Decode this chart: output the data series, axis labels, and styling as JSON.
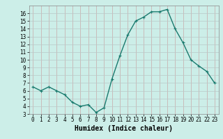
{
  "x": [
    0,
    1,
    2,
    3,
    4,
    5,
    6,
    7,
    8,
    9,
    10,
    11,
    12,
    13,
    14,
    15,
    16,
    17,
    18,
    19,
    20,
    21,
    22,
    23
  ],
  "y": [
    6.5,
    6.0,
    6.5,
    6.0,
    5.5,
    4.5,
    4.0,
    4.2,
    3.2,
    3.8,
    7.5,
    10.5,
    13.2,
    15.0,
    15.5,
    16.2,
    16.2,
    16.5,
    14.0,
    12.2,
    10.0,
    9.2,
    8.5,
    7.0
  ],
  "line_color": "#1a7a6e",
  "marker": "+",
  "marker_size": 3,
  "linewidth": 1.0,
  "xlabel": "Humidex (Indice chaleur)",
  "xlim": [
    -0.5,
    23.5
  ],
  "ylim": [
    3,
    17
  ],
  "yticks": [
    3,
    4,
    5,
    6,
    7,
    8,
    9,
    10,
    11,
    12,
    13,
    14,
    15,
    16
  ],
  "xticks": [
    0,
    1,
    2,
    3,
    4,
    5,
    6,
    7,
    8,
    9,
    10,
    11,
    12,
    13,
    14,
    15,
    16,
    17,
    18,
    19,
    20,
    21,
    22,
    23
  ],
  "bg_color": "#cceee8",
  "grid_color_v": "#c8a8a8",
  "grid_color_h": "#b8c8c8",
  "tick_fontsize": 5.5,
  "xlabel_fontsize": 7
}
